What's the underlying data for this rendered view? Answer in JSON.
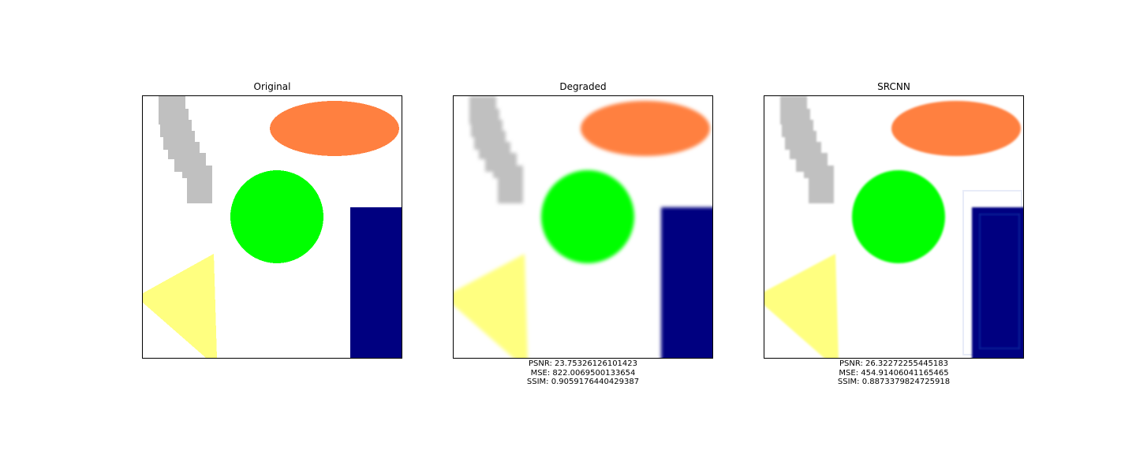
{
  "panels": [
    {
      "title": "Original",
      "metrics": []
    },
    {
      "title": "Degraded",
      "metrics": [
        "PSNR: 23.75326126101423",
        "MSE: 822.0069500133654",
        "SSIM: 0.9059176440429387"
      ]
    },
    {
      "title": "SRCNN",
      "metrics": [
        "PSNR: 26.32272255445183",
        "MSE: 454.91406041165465",
        "SSIM: 0.8873379824725918"
      ]
    }
  ],
  "colors": {
    "gray": "#c0c0c0",
    "orange": "#ff8040",
    "green": "#00ff00",
    "navy": "#000080",
    "yellow": "#ffff80"
  }
}
